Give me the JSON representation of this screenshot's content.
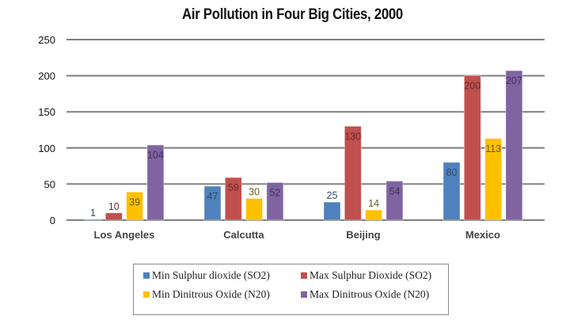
{
  "chart_data": {
    "type": "bar",
    "title": "Air Pollution in Four Big Cities, 2000",
    "xlabel": "",
    "ylabel": "",
    "ylim": [
      0,
      250
    ],
    "yticks": [
      0,
      50,
      100,
      150,
      200,
      250
    ],
    "grid": true,
    "legend_position": "bottom",
    "categories": [
      "Los Angeles",
      "Calcutta",
      "Beijing",
      "Mexico"
    ],
    "series": [
      {
        "name": "Min Sulphur dioxide (SO2)",
        "color": "#4f81bd",
        "label_color": "#3a4a66",
        "values": [
          1,
          47,
          25,
          80
        ]
      },
      {
        "name": "Max Sulphur Dioxide (SO2)",
        "color": "#c0504d",
        "label_color": "#6e2a28",
        "values": [
          10,
          59,
          130,
          200
        ]
      },
      {
        "name": "Min Dinitrous Oxide (N20)",
        "color": "#ffc000",
        "label_color": "#6b5a1a",
        "values": [
          39,
          30,
          14,
          113
        ]
      },
      {
        "name": "Max Dinitrous Oxide (N20)",
        "color": "#8064a2",
        "label_color": "#3f3357",
        "values": [
          104,
          52,
          54,
          207
        ]
      }
    ],
    "data_labels": true
  }
}
